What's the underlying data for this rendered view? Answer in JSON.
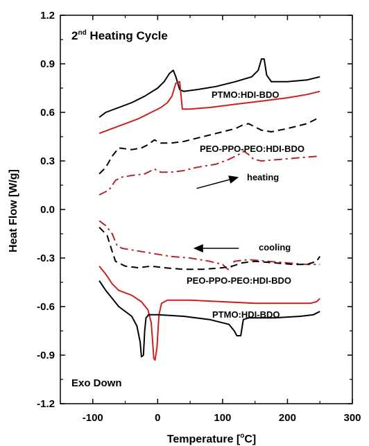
{
  "chart_data": {
    "type": "line",
    "title_prefix": "2",
    "title_sup": "nd",
    "title_rest": " Heating Cycle",
    "xlabel_main": "Temperature [",
    "xlabel_sup": "o",
    "xlabel_end": "C]",
    "ylabel": "Heat Flow [W/g]",
    "xlim": [
      -150,
      300
    ],
    "ylim": [
      -1.2,
      1.2
    ],
    "xticks": [
      "-100",
      "0",
      "100",
      "200",
      "300"
    ],
    "xtick_values": [
      -100,
      0,
      100,
      200,
      300
    ],
    "yticks": [
      "1.2",
      "0.9",
      "0.6",
      "0.3",
      "0.0",
      "-0.3",
      "-0.6",
      "-0.9",
      "-1.2"
    ],
    "ytick_values": [
      1.2,
      0.9,
      0.6,
      0.3,
      0.0,
      -0.3,
      -0.6,
      -0.9,
      -1.2
    ],
    "grid": false,
    "colors": {
      "black": "#000000",
      "red": "#cc1f1f",
      "darkred": "#b3262b"
    },
    "annotations": {
      "ptmo_top": "PTMO:HDI-BDO",
      "peo_top": "PEO-PPO-PEO:HDI-BDO",
      "heating": "heating",
      "cooling": "cooling",
      "peo_bottom": "PEO-PPO-PEO:HDI-BDO",
      "ptmo_bottom": "PTMO:HDI-BDO",
      "exo_down": "Exo Down"
    },
    "series": [
      {
        "id": "ptmo-heat-black",
        "color": "#000000",
        "dash": "solid",
        "points": [
          [
            -90,
            0.57
          ],
          [
            -80,
            0.6
          ],
          [
            -60,
            0.63
          ],
          [
            -40,
            0.66
          ],
          [
            -20,
            0.7
          ],
          [
            0,
            0.75
          ],
          [
            10,
            0.79
          ],
          [
            18,
            0.84
          ],
          [
            24,
            0.86
          ],
          [
            28,
            0.82
          ],
          [
            34,
            0.74
          ],
          [
            40,
            0.73
          ],
          [
            60,
            0.74
          ],
          [
            90,
            0.76
          ],
          [
            120,
            0.79
          ],
          [
            145,
            0.82
          ],
          [
            155,
            0.86
          ],
          [
            160,
            0.93
          ],
          [
            164,
            0.93
          ],
          [
            168,
            0.83
          ],
          [
            175,
            0.79
          ],
          [
            200,
            0.79
          ],
          [
            230,
            0.8
          ],
          [
            250,
            0.82
          ]
        ]
      },
      {
        "id": "ptmo-heat-red",
        "color": "#cc1f1f",
        "dash": "solid",
        "points": [
          [
            -90,
            0.47
          ],
          [
            -70,
            0.5
          ],
          [
            -50,
            0.53
          ],
          [
            -30,
            0.56
          ],
          [
            -10,
            0.6
          ],
          [
            5,
            0.63
          ],
          [
            15,
            0.66
          ],
          [
            22,
            0.7
          ],
          [
            28,
            0.78
          ],
          [
            34,
            0.79
          ],
          [
            38,
            0.62
          ],
          [
            50,
            0.62
          ],
          [
            80,
            0.63
          ],
          [
            120,
            0.65
          ],
          [
            160,
            0.67
          ],
          [
            200,
            0.69
          ],
          [
            230,
            0.71
          ],
          [
            250,
            0.73
          ]
        ]
      },
      {
        "id": "peo-heat-black",
        "color": "#000000",
        "dash": "dashed",
        "points": [
          [
            -90,
            0.22
          ],
          [
            -80,
            0.26
          ],
          [
            -70,
            0.33
          ],
          [
            -60,
            0.38
          ],
          [
            -40,
            0.37
          ],
          [
            -25,
            0.38
          ],
          [
            -15,
            0.4
          ],
          [
            -5,
            0.43
          ],
          [
            5,
            0.41
          ],
          [
            20,
            0.41
          ],
          [
            40,
            0.42
          ],
          [
            60,
            0.44
          ],
          [
            80,
            0.46
          ],
          [
            100,
            0.48
          ],
          [
            120,
            0.5
          ],
          [
            130,
            0.52
          ],
          [
            140,
            0.53
          ],
          [
            150,
            0.51
          ],
          [
            160,
            0.49
          ],
          [
            175,
            0.48
          ],
          [
            200,
            0.5
          ],
          [
            230,
            0.53
          ],
          [
            250,
            0.57
          ]
        ]
      },
      {
        "id": "peo-heat-red",
        "color": "#b3262b",
        "dash": "dashdot",
        "points": [
          [
            -90,
            0.09
          ],
          [
            -75,
            0.12
          ],
          [
            -65,
            0.18
          ],
          [
            -55,
            0.2
          ],
          [
            -40,
            0.21
          ],
          [
            -20,
            0.22
          ],
          [
            -5,
            0.25
          ],
          [
            5,
            0.23
          ],
          [
            20,
            0.23
          ],
          [
            40,
            0.24
          ],
          [
            60,
            0.26
          ],
          [
            90,
            0.28
          ],
          [
            110,
            0.31
          ],
          [
            125,
            0.34
          ],
          [
            133,
            0.36
          ],
          [
            140,
            0.34
          ],
          [
            148,
            0.31
          ],
          [
            160,
            0.3
          ],
          [
            190,
            0.31
          ],
          [
            220,
            0.32
          ],
          [
            250,
            0.33
          ]
        ]
      },
      {
        "id": "peo-cool-red",
        "color": "#b3262b",
        "dash": "dashdot",
        "points": [
          [
            -90,
            -0.07
          ],
          [
            -80,
            -0.1
          ],
          [
            -70,
            -0.15
          ],
          [
            -63,
            -0.22
          ],
          [
            -55,
            -0.24
          ],
          [
            -40,
            -0.25
          ],
          [
            -10,
            -0.27
          ],
          [
            20,
            -0.29
          ],
          [
            50,
            -0.3
          ],
          [
            80,
            -0.32
          ],
          [
            100,
            -0.34
          ],
          [
            108,
            -0.37
          ],
          [
            112,
            -0.37
          ],
          [
            118,
            -0.32
          ],
          [
            140,
            -0.31
          ],
          [
            170,
            -0.32
          ],
          [
            200,
            -0.33
          ],
          [
            230,
            -0.34
          ],
          [
            250,
            -0.34
          ]
        ]
      },
      {
        "id": "peo-cool-black",
        "color": "#000000",
        "dash": "dashed",
        "points": [
          [
            -90,
            -0.11
          ],
          [
            -78,
            -0.16
          ],
          [
            -70,
            -0.26
          ],
          [
            -65,
            -0.32
          ],
          [
            -50,
            -0.35
          ],
          [
            -30,
            -0.36
          ],
          [
            -10,
            -0.35
          ],
          [
            10,
            -0.36
          ],
          [
            40,
            -0.37
          ],
          [
            70,
            -0.37
          ],
          [
            100,
            -0.36
          ],
          [
            115,
            -0.35
          ],
          [
            130,
            -0.33
          ],
          [
            150,
            -0.32
          ],
          [
            180,
            -0.33
          ],
          [
            210,
            -0.34
          ],
          [
            230,
            -0.34
          ],
          [
            245,
            -0.32
          ],
          [
            250,
            -0.29
          ]
        ]
      },
      {
        "id": "ptmo-cool-red",
        "color": "#cc1f1f",
        "dash": "solid",
        "points": [
          [
            -90,
            -0.35
          ],
          [
            -80,
            -0.4
          ],
          [
            -70,
            -0.46
          ],
          [
            -60,
            -0.5
          ],
          [
            -40,
            -0.53
          ],
          [
            -25,
            -0.57
          ],
          [
            -15,
            -0.62
          ],
          [
            -10,
            -0.7
          ],
          [
            -8,
            -0.8
          ],
          [
            -6,
            -0.92
          ],
          [
            -4,
            -0.93
          ],
          [
            -1,
            -0.85
          ],
          [
            2,
            -0.65
          ],
          [
            6,
            -0.58
          ],
          [
            15,
            -0.56
          ],
          [
            50,
            -0.56
          ],
          [
            100,
            -0.57
          ],
          [
            150,
            -0.58
          ],
          [
            200,
            -0.58
          ],
          [
            235,
            -0.58
          ],
          [
            245,
            -0.57
          ],
          [
            250,
            -0.55
          ]
        ]
      },
      {
        "id": "ptmo-cool-black",
        "color": "#000000",
        "dash": "solid",
        "points": [
          [
            -90,
            -0.44
          ],
          [
            -80,
            -0.5
          ],
          [
            -70,
            -0.55
          ],
          [
            -60,
            -0.6
          ],
          [
            -50,
            -0.63
          ],
          [
            -40,
            -0.66
          ],
          [
            -32,
            -0.72
          ],
          [
            -27,
            -0.82
          ],
          [
            -25,
            -0.91
          ],
          [
            -22,
            -0.9
          ],
          [
            -20,
            -0.75
          ],
          [
            -18,
            -0.67
          ],
          [
            -14,
            -0.65
          ],
          [
            0,
            -0.65
          ],
          [
            40,
            -0.66
          ],
          [
            80,
            -0.68
          ],
          [
            110,
            -0.71
          ],
          [
            118,
            -0.75
          ],
          [
            122,
            -0.78
          ],
          [
            128,
            -0.78
          ],
          [
            132,
            -0.68
          ],
          [
            140,
            -0.67
          ],
          [
            180,
            -0.67
          ],
          [
            220,
            -0.66
          ],
          [
            240,
            -0.65
          ],
          [
            250,
            -0.63
          ]
        ]
      }
    ],
    "arrows": [
      {
        "id": "heating-arrow",
        "from": [
          60,
          0.13
        ],
        "to": [
          125,
          0.2
        ]
      },
      {
        "id": "cooling-arrow",
        "from": [
          125,
          -0.24
        ],
        "to": [
          55,
          -0.24
        ]
      }
    ]
  }
}
